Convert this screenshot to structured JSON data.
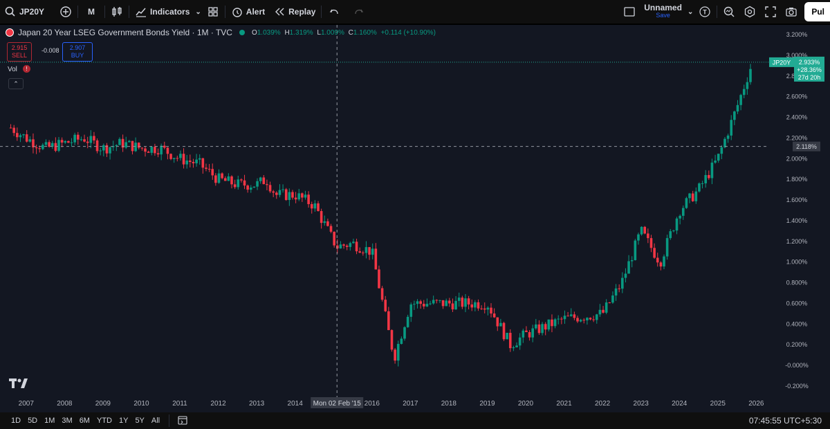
{
  "toolbar": {
    "symbol": "JP20Y",
    "interval": "M",
    "indicators_label": "Indicators",
    "alert_label": "Alert",
    "replay_label": "Replay",
    "layout_name": "Unnamed",
    "save_label": "Save",
    "publish_label": "Pul",
    "icons": [
      "search-icon",
      "add-symbol-icon",
      "candle-type-icon",
      "indicators-icon",
      "templates-icon",
      "alert-icon",
      "replay-icon",
      "undo-icon",
      "redo-icon",
      "layout-icon",
      "chevron-down-icon",
      "trade-icon",
      "quick-search-icon",
      "settings-icon",
      "fullscreen-icon",
      "camera-icon"
    ]
  },
  "legend": {
    "title": "Japan 20 Year LSEG Government Bonds Yield · 1M · TVC",
    "o_label": "O",
    "o": "1.039%",
    "h_label": "H",
    "h": "1.319%",
    "l_label": "L",
    "l": "1.009%",
    "c_label": "C",
    "c": "1.160%",
    "change": "+0.114 (+10.90%)"
  },
  "trade": {
    "sell_price": "2.915",
    "sell_label": "SELL",
    "spread": "-0.008",
    "buy_price": "2.907",
    "buy_label": "BUY"
  },
  "vol_label": "Vol",
  "vol_warning": "!",
  "colors": {
    "up": "#089981",
    "down": "#f23645",
    "bg": "#131722",
    "grid": "#1e222d",
    "text": "#b2b5be",
    "accent": "#22ab94"
  },
  "chart_data": {
    "type": "candlestick",
    "title": "Japan 20 Year LSEG Government Bonds Yield · 1M · TVC",
    "ylim": [
      -0.2,
      3.2
    ],
    "y_ticks": [
      "3.200%",
      "3.000%",
      "2.800%",
      "2.600%",
      "2.400%",
      "2.200%",
      "2.000%",
      "1.800%",
      "1.600%",
      "1.400%",
      "1.200%",
      "1.000%",
      "0.800%",
      "0.600%",
      "0.400%",
      "0.200%",
      "-0.000%",
      "-0.200%"
    ],
    "x_ticks": [
      "2007",
      "2008",
      "2009",
      "2010",
      "2011",
      "2012",
      "2013",
      "2014",
      "2016",
      "2017",
      "2018",
      "2019",
      "2020",
      "2021",
      "2022",
      "2023",
      "2024",
      "2025",
      "2026"
    ],
    "x_range": [
      2006.5,
      2026.3
    ],
    "series": [
      {
        "x": [
          2006.6,
          2007.0,
          2007.5,
          2008.0,
          2008.5,
          2009.0,
          2009.5,
          2010.0,
          2010.5,
          2011.0,
          2011.5,
          2012.0,
          2012.5,
          2013.0,
          2013.25,
          2013.5,
          2014.0,
          2014.5,
          2015.0,
          2015.1,
          2015.5,
          2016.0,
          2016.5,
          2016.6,
          2017.0,
          2018.0,
          2019.0,
          2019.6,
          2020.0,
          2021.0,
          2022.0,
          2022.5,
          2023.0,
          2023.5,
          2024.0,
          2024.5,
          2025.0,
          2025.5,
          2025.9
        ],
        "y": [
          2.3,
          2.2,
          2.1,
          2.15,
          2.2,
          2.1,
          2.15,
          2.1,
          2.1,
          2.0,
          1.95,
          1.8,
          1.75,
          1.75,
          1.8,
          1.65,
          1.65,
          1.55,
          1.2,
          1.15,
          1.18,
          1.1,
          0.2,
          0.1,
          0.6,
          0.6,
          0.6,
          0.2,
          0.3,
          0.45,
          0.5,
          0.8,
          1.3,
          1.0,
          1.5,
          1.7,
          2.0,
          2.5,
          2.933
        ]
      }
    ],
    "last_label": "JP20Y",
    "last_value": "2.933%",
    "last_change": "+28.36%",
    "last_countdown": "27d 20h",
    "crosshair_y": "2.118%",
    "crosshair_x": "Mon 02 Feb '15"
  },
  "bottom": {
    "ranges": [
      "1D",
      "5D",
      "1M",
      "3M",
      "6M",
      "YTD",
      "1Y",
      "5Y",
      "All"
    ],
    "clock": "07:45:55 UTC+5:30"
  }
}
